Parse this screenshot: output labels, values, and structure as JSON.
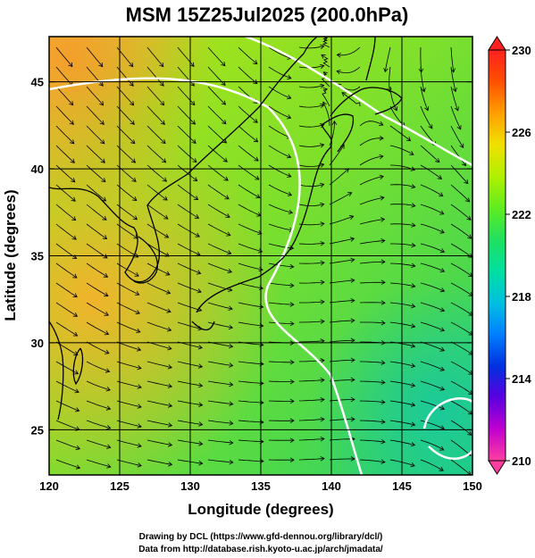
{
  "title": "MSM 15Z25Jul2025 (200.0hPa)",
  "x_axis": {
    "label": "Longitude (degrees)",
    "range": [
      120,
      150
    ],
    "ticks": [
      {
        "value": 120,
        "label": "120"
      },
      {
        "value": 125,
        "label": "125"
      },
      {
        "value": 130,
        "label": "130"
      },
      {
        "value": 135,
        "label": "135"
      },
      {
        "value": 140,
        "label": "140"
      },
      {
        "value": 145,
        "label": "145"
      },
      {
        "value": 150,
        "label": "150"
      }
    ]
  },
  "y_axis": {
    "label": "Latitude  (degrees)",
    "range": [
      22.4,
      47.6
    ],
    "ticks": [
      {
        "value": 25,
        "label": "25"
      },
      {
        "value": 30,
        "label": "30"
      },
      {
        "value": 35,
        "label": "35"
      },
      {
        "value": 40,
        "label": "40"
      },
      {
        "value": 45,
        "label": "45"
      }
    ]
  },
  "grid": true,
  "colorbar": {
    "range": [
      210,
      230
    ],
    "ticks": [
      {
        "value": 230,
        "label": "230"
      },
      {
        "value": 226,
        "label": "226"
      },
      {
        "value": 222,
        "label": "222"
      },
      {
        "value": 218,
        "label": "218"
      },
      {
        "value": 214,
        "label": "214"
      },
      {
        "value": 210,
        "label": "210"
      }
    ],
    "colors": [
      "#ff3fa0",
      "#c000d0",
      "#5a00e0",
      "#0030e0",
      "#0080ff",
      "#00c0e0",
      "#00e0a0",
      "#20e060",
      "#60ec20",
      "#b0f000",
      "#f0e000",
      "#ffa000",
      "#ff5000",
      "#ff2020"
    ]
  },
  "credits": {
    "line1": "Drawing by DCL (https://www.gfd-dennou.org/library/dcl/)",
    "line2": "Data from http://database.rish.kyoto-u.ac.jp/arch/jmadata/"
  }
}
